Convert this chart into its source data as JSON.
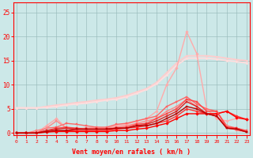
{
  "x": [
    0,
    1,
    2,
    3,
    4,
    5,
    6,
    7,
    8,
    9,
    10,
    11,
    12,
    13,
    14,
    15,
    16,
    17,
    18,
    19,
    20,
    21,
    22,
    23
  ],
  "lines": [
    {
      "y": [
        5.2,
        5.2,
        5.2,
        5.5,
        5.8,
        6.0,
        6.3,
        6.5,
        6.8,
        7.0,
        7.3,
        7.8,
        8.5,
        9.2,
        10.5,
        12.5,
        14.5,
        16.0,
        16.0,
        16.0,
        15.8,
        15.5,
        15.2,
        15.0
      ],
      "color": "#ffcccc",
      "lw": 1.3,
      "marker": "D",
      "ms": 1.5,
      "zorder": 2
    },
    {
      "y": [
        5.2,
        5.2,
        5.2,
        5.3,
        5.5,
        5.8,
        6.0,
        6.2,
        6.5,
        6.8,
        7.0,
        7.5,
        8.2,
        9.0,
        10.2,
        12.0,
        14.0,
        15.5,
        15.5,
        15.5,
        15.3,
        15.0,
        14.8,
        14.5
      ],
      "color": "#ffdddd",
      "lw": 1.3,
      "marker": "D",
      "ms": 1.5,
      "zorder": 2
    },
    {
      "y": [
        0,
        0,
        0,
        1.5,
        3.0,
        1.0,
        1.0,
        1.0,
        1.2,
        1.0,
        1.5,
        1.8,
        2.5,
        3.0,
        4.5,
        10.0,
        13.5,
        21.0,
        16.5,
        5.0,
        3.0,
        2.5,
        3.0,
        3.0
      ],
      "color": "#ffaaaa",
      "lw": 1.0,
      "marker": "D",
      "ms": 1.8,
      "zorder": 3
    },
    {
      "y": [
        0,
        0,
        0,
        1.0,
        1.2,
        2.0,
        1.8,
        1.5,
        1.2,
        1.2,
        1.8,
        2.0,
        2.5,
        3.0,
        3.5,
        5.5,
        6.5,
        7.5,
        6.0,
        5.0,
        4.5,
        1.5,
        1.0,
        0.5
      ],
      "color": "#ff6666",
      "lw": 1.0,
      "marker": "s",
      "ms": 1.8,
      "zorder": 4
    },
    {
      "y": [
        0,
        0,
        0.5,
        1.0,
        2.5,
        1.0,
        0.8,
        1.0,
        1.0,
        1.0,
        1.2,
        1.5,
        2.0,
        2.5,
        3.0,
        4.5,
        5.5,
        7.0,
        5.5,
        4.0,
        3.5,
        1.5,
        0.5,
        0.3
      ],
      "color": "#ff8888",
      "lw": 1.0,
      "marker": "s",
      "ms": 1.8,
      "zorder": 4
    },
    {
      "y": [
        0,
        0,
        0,
        0.5,
        1.0,
        1.2,
        1.0,
        0.8,
        0.8,
        0.8,
        1.0,
        1.2,
        1.8,
        2.0,
        3.0,
        4.0,
        5.0,
        7.0,
        6.5,
        4.5,
        4.5,
        1.2,
        1.0,
        0.3
      ],
      "color": "#ff4444",
      "lw": 1.0,
      "marker": "s",
      "ms": 1.8,
      "zorder": 4
    },
    {
      "y": [
        0,
        0,
        0,
        0.5,
        0.8,
        1.0,
        0.8,
        0.8,
        0.8,
        0.8,
        1.0,
        1.0,
        1.5,
        1.8,
        2.5,
        3.5,
        4.5,
        6.5,
        5.5,
        4.0,
        3.5,
        1.0,
        0.8,
        0.2
      ],
      "color": "#dd2222",
      "lw": 1.0,
      "marker": "s",
      "ms": 1.8,
      "zorder": 4
    },
    {
      "y": [
        0,
        0,
        0,
        0.3,
        0.5,
        0.5,
        0.8,
        0.8,
        0.8,
        0.8,
        1.0,
        1.0,
        1.5,
        1.5,
        2.0,
        3.0,
        4.0,
        5.5,
        5.0,
        4.0,
        3.5,
        1.0,
        0.8,
        0.2
      ],
      "color": "#bb0000",
      "lw": 1.0,
      "marker": "s",
      "ms": 1.8,
      "zorder": 4
    },
    {
      "y": [
        0,
        0,
        0,
        0.2,
        0.5,
        0.5,
        0.5,
        0.5,
        0.5,
        0.5,
        0.8,
        1.0,
        1.2,
        1.5,
        2.0,
        2.5,
        3.5,
        5.0,
        4.5,
        4.0,
        4.0,
        4.5,
        3.5,
        2.8
      ],
      "color": "#ff3333",
      "lw": 1.0,
      "marker": "D",
      "ms": 1.8,
      "zorder": 3
    },
    {
      "y": [
        0,
        0,
        0,
        0.2,
        0.3,
        0.3,
        0.3,
        0.3,
        0.3,
        0.3,
        0.5,
        0.5,
        0.8,
        1.0,
        1.5,
        2.0,
        3.0,
        4.0,
        4.0,
        4.0,
        4.0,
        4.5,
        3.2,
        2.8
      ],
      "color": "#ff0000",
      "lw": 1.0,
      "marker": "D",
      "ms": 1.8,
      "zorder": 3
    }
  ],
  "xlim": [
    -0.3,
    23.3
  ],
  "ylim": [
    -0.5,
    27
  ],
  "yticks": [
    0,
    5,
    10,
    15,
    20,
    25
  ],
  "xticks": [
    0,
    1,
    2,
    3,
    4,
    5,
    6,
    7,
    8,
    9,
    10,
    11,
    12,
    13,
    14,
    15,
    16,
    17,
    18,
    19,
    20,
    21,
    22,
    23
  ],
  "xlabel": "Vent moyen/en rafales ( km/h )",
  "bg_color": "#cce8e8",
  "grid_color": "#99bbbb",
  "tick_color": "#ff0000",
  "label_color": "#ff0000",
  "spine_color": "#ff0000",
  "spine_bottom_color": "#ff0000"
}
